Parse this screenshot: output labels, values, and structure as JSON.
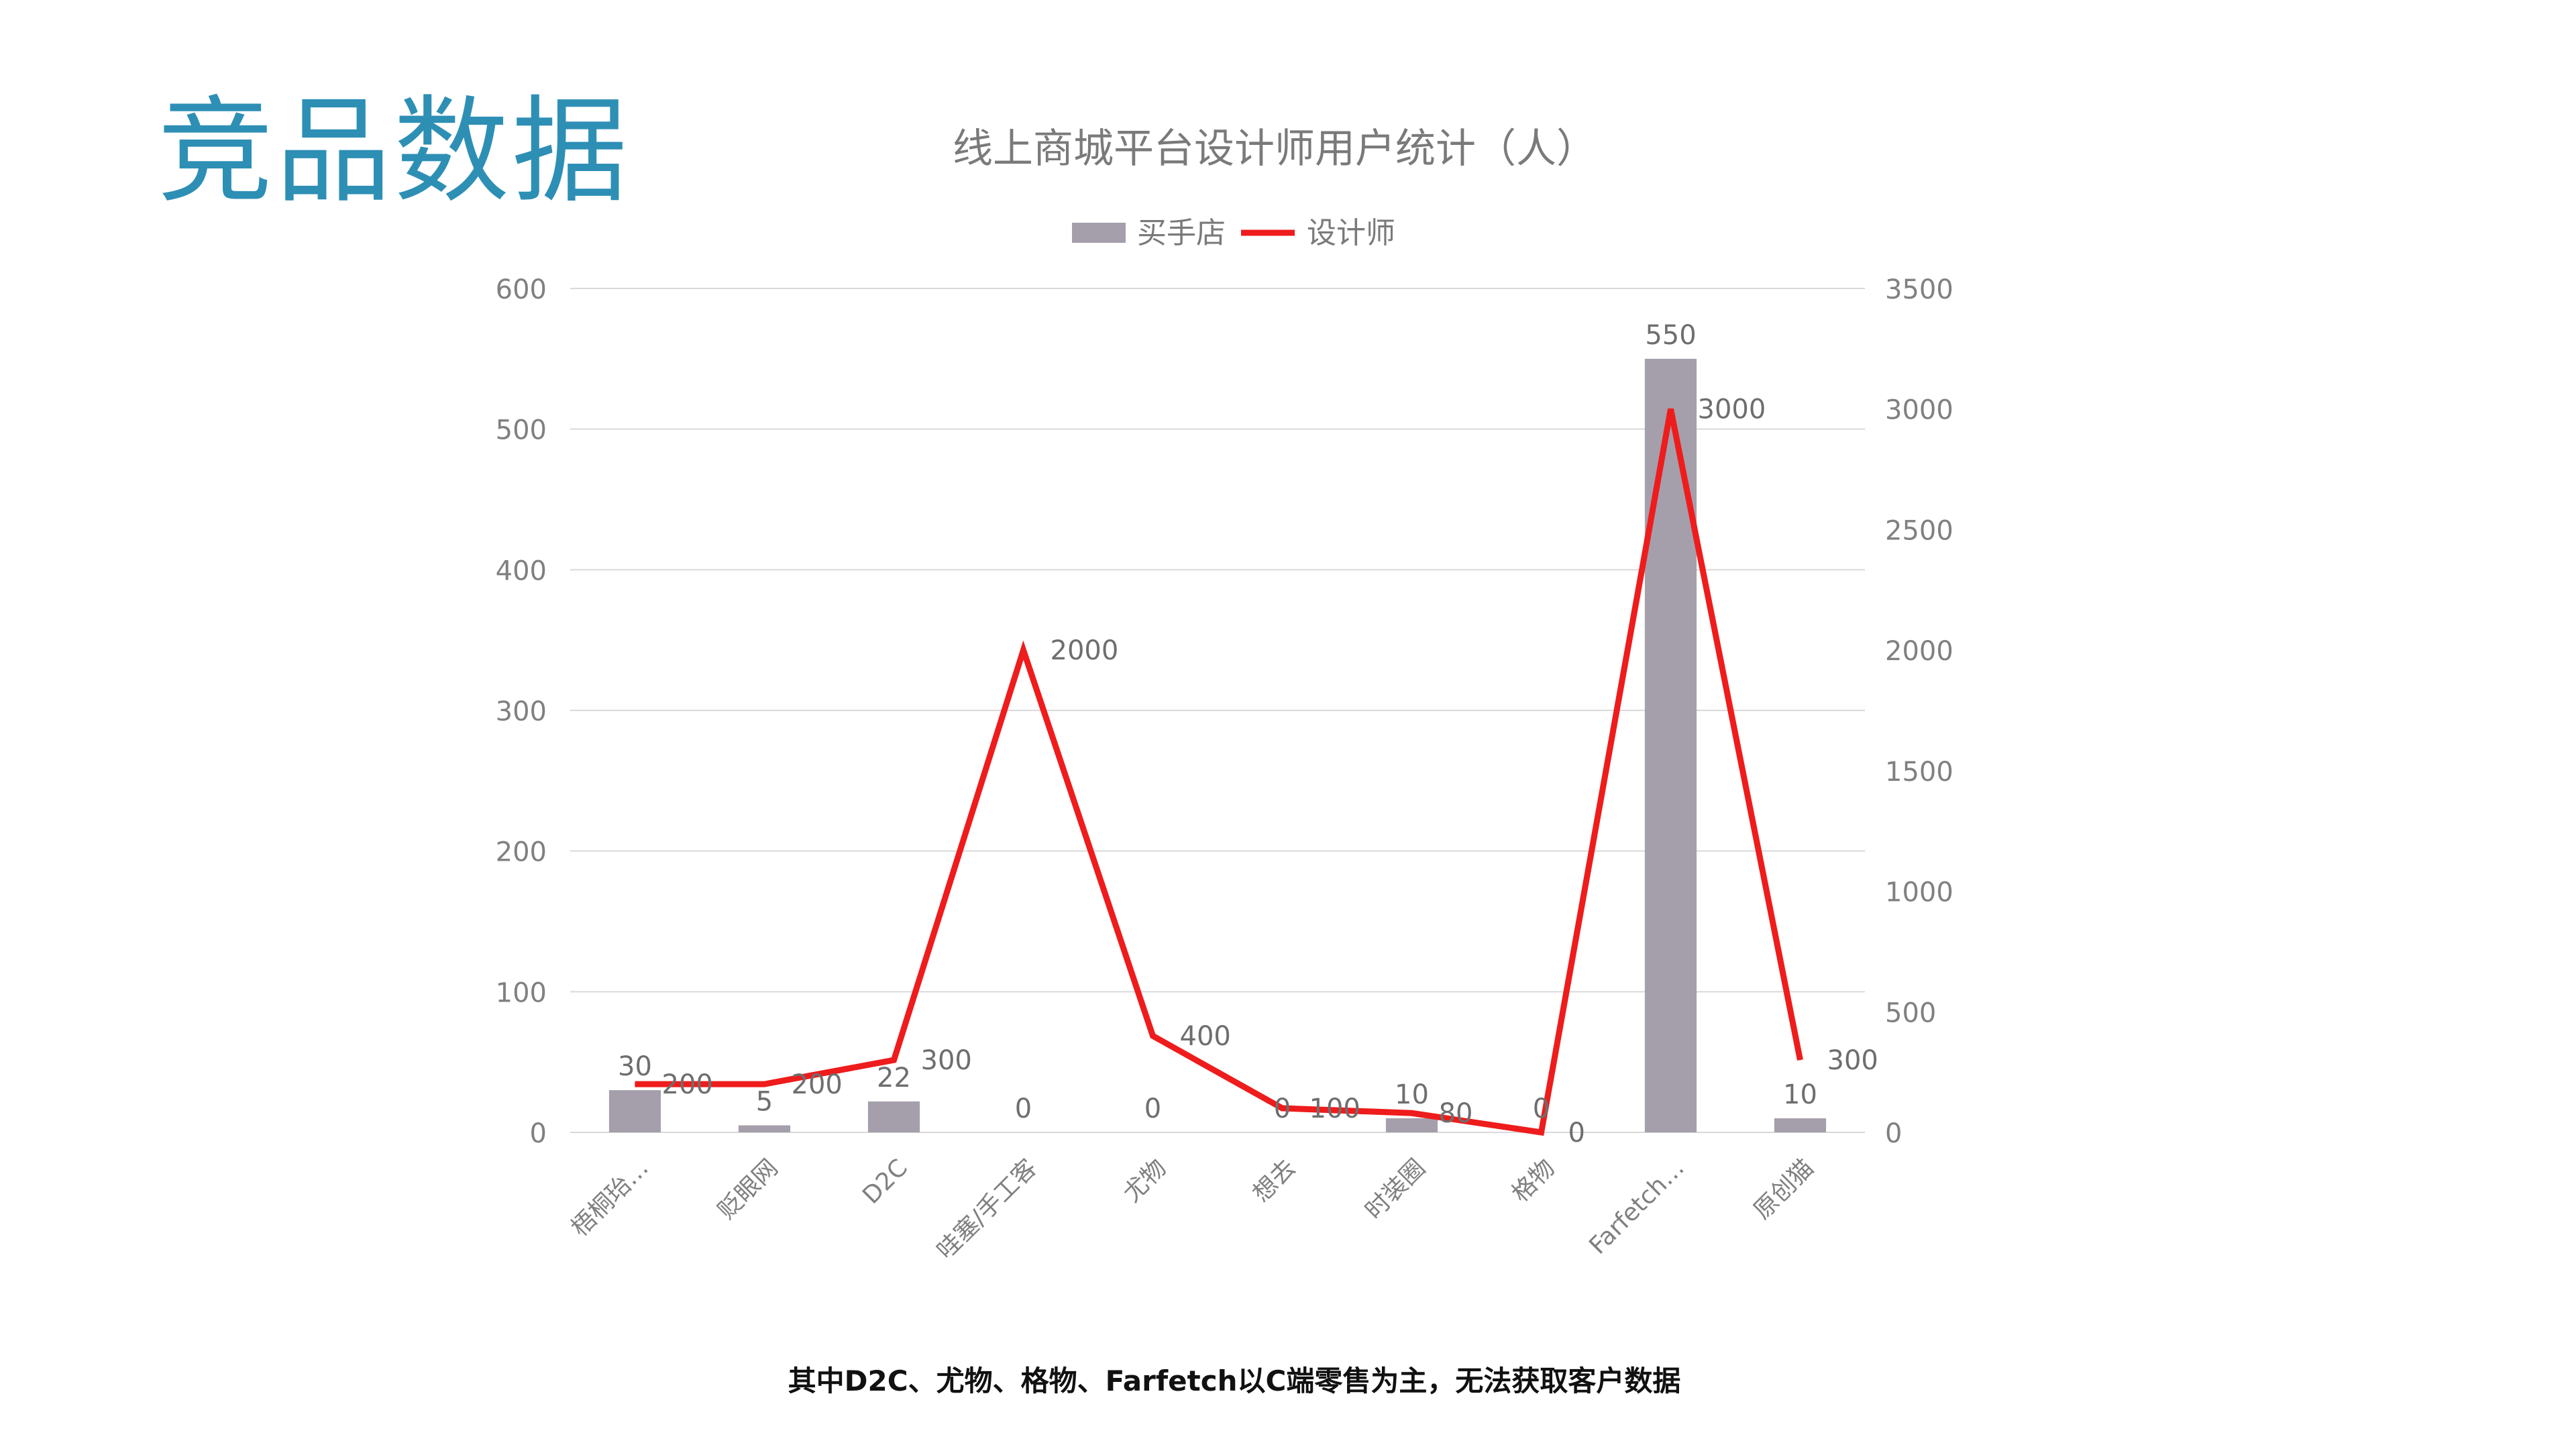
{
  "page": {
    "heading": "竞品数据",
    "footnote": "其中D2C、尤物、格物、Farfetch以C端零售为主，无法获取客户数据"
  },
  "chart_data": {
    "type": "bar",
    "title": "线上商城平台设计师用户统计（人）",
    "categories": [
      "梧桐珆…",
      "贬眼网",
      "D2C",
      "哇塞/手工客",
      "尤物",
      "想去",
      "时装圈",
      "格物",
      "Farfetch…",
      "原创猫"
    ],
    "series": [
      {
        "name": "买手店",
        "type": "bar",
        "axis": "left",
        "color": "#a59fab",
        "values": [
          30,
          5,
          22,
          0,
          0,
          0,
          10,
          0,
          550,
          10
        ]
      },
      {
        "name": "设计师",
        "type": "line",
        "axis": "right",
        "color": "#ee1c1c",
        "values": [
          200,
          200,
          300,
          2000,
          400,
          100,
          80,
          0,
          3000,
          300
        ]
      }
    ],
    "y_left": {
      "range": [
        0,
        600
      ],
      "ticks": [
        "0",
        "100",
        "200",
        "300",
        "400",
        "500",
        "600"
      ]
    },
    "y_right": {
      "range": [
        0,
        3500
      ],
      "ticks": [
        "0",
        "500",
        "1000",
        "1500",
        "2000",
        "2500",
        "3000",
        "3500"
      ]
    },
    "grid": true,
    "legend": "top-center"
  }
}
